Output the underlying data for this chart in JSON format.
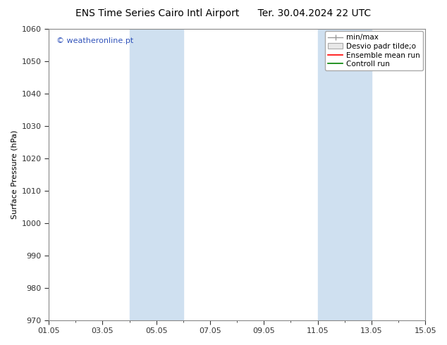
{
  "title": "ENS Time Series Cairo Intl Airport      Ter. 30.04.2024 22 UTC",
  "ylabel": "Surface Pressure (hPa)",
  "ylim": [
    970,
    1060
  ],
  "yticks": [
    970,
    980,
    990,
    1000,
    1010,
    1020,
    1030,
    1040,
    1050,
    1060
  ],
  "xlim_days": [
    0,
    14
  ],
  "xtick_labels": [
    "01.05",
    "03.05",
    "05.05",
    "07.05",
    "09.05",
    "11.05",
    "13.05",
    "15.05"
  ],
  "xtick_positions": [
    0,
    2,
    4,
    6,
    8,
    10,
    12,
    14
  ],
  "shaded_bands": [
    {
      "xmin": 3.0,
      "xmax": 5.0
    },
    {
      "xmin": 10.0,
      "xmax": 12.0
    }
  ],
  "shade_color": "#cfe0f0",
  "watermark": "© weatheronline.pt",
  "bg_color": "#ffffff",
  "plot_bg_color": "#ffffff",
  "title_fontsize": 10,
  "label_fontsize": 8,
  "tick_fontsize": 8,
  "legend_fontsize": 7.5,
  "watermark_fontsize": 8,
  "watermark_color": "#3355bb",
  "spine_color": "#888888",
  "tick_color": "#333333"
}
